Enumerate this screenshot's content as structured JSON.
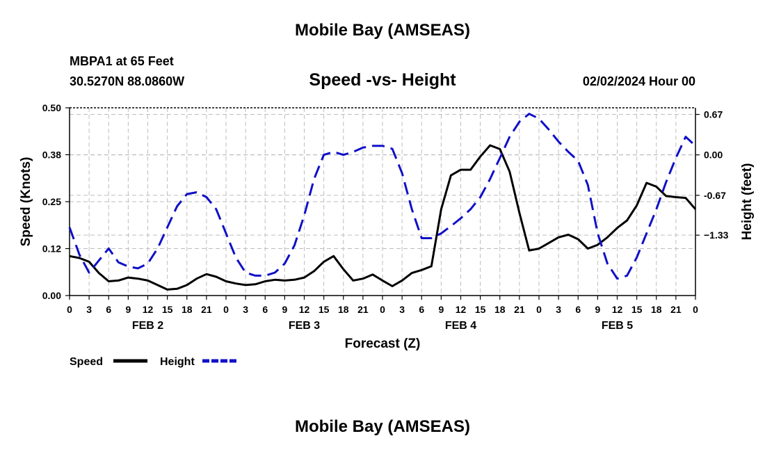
{
  "page": {
    "title_top": "Mobile Bay (AMSEAS)",
    "title_bottom": "Mobile Bay (AMSEAS)",
    "station": "MBPA1 at 65 Feet",
    "coords": "30.5270N  88.0860W",
    "subtitle": "Speed -vs- Height",
    "datestamp": "02/02/2024 Hour 00"
  },
  "colors": {
    "speed": "#000000",
    "height": "#1010c8",
    "grid": "#bdbdbd"
  },
  "chart_data": {
    "type": "line",
    "title": "Speed -vs- Height",
    "xlabel": "Forecast (Z)",
    "x_hour_range": [
      0,
      96
    ],
    "x_tick_labels": [
      "0",
      "3",
      "6",
      "9",
      "12",
      "15",
      "18",
      "21",
      "0",
      "3",
      "6",
      "9",
      "12",
      "15",
      "18",
      "21",
      "0",
      "3",
      "6",
      "9",
      "12",
      "15",
      "18",
      "21",
      "0",
      "3",
      "6",
      "9",
      "12",
      "15",
      "18",
      "21",
      "0"
    ],
    "day_labels": [
      "FEB 2",
      "FEB 3",
      "FEB 4",
      "FEB 5"
    ],
    "ylabel_left": "Speed (Knots)",
    "ylim_left": [
      0,
      0.5
    ],
    "yticks_left": [
      "0.00",
      "0.12",
      "0.25",
      "0.38",
      "0.50"
    ],
    "ylabel_right": "Height (feet)",
    "ylim_right": [
      -2.33,
      0.78
    ],
    "yticks_right": [
      {
        "value": 0.67,
        "label": "0.67"
      },
      {
        "value": 0.0,
        "label": "0.00"
      },
      {
        "value": -0.67,
        "label": "-0.67"
      },
      {
        "value": -1.33,
        "label": "−1.33"
      }
    ],
    "grid": true,
    "series": [
      {
        "name": "Speed",
        "axis": "left",
        "style": "solid",
        "points": [
          [
            0,
            0.105
          ],
          [
            1.5,
            0.1
          ],
          [
            3,
            0.09
          ],
          [
            4.5,
            0.06
          ],
          [
            6,
            0.038
          ],
          [
            7.5,
            0.04
          ],
          [
            9,
            0.048
          ],
          [
            10.5,
            0.045
          ],
          [
            12,
            0.04
          ],
          [
            13.5,
            0.028
          ],
          [
            15,
            0.016
          ],
          [
            16.5,
            0.018
          ],
          [
            18,
            0.028
          ],
          [
            19.5,
            0.045
          ],
          [
            21,
            0.057
          ],
          [
            22.5,
            0.05
          ],
          [
            24,
            0.038
          ],
          [
            25.5,
            0.032
          ],
          [
            27,
            0.028
          ],
          [
            28.5,
            0.03
          ],
          [
            30,
            0.038
          ],
          [
            31.5,
            0.042
          ],
          [
            33,
            0.04
          ],
          [
            34.5,
            0.042
          ],
          [
            36,
            0.048
          ],
          [
            37.5,
            0.065
          ],
          [
            39,
            0.09
          ],
          [
            40.5,
            0.105
          ],
          [
            42,
            0.07
          ],
          [
            43.5,
            0.04
          ],
          [
            45,
            0.045
          ],
          [
            46.5,
            0.056
          ],
          [
            48,
            0.04
          ],
          [
            49.5,
            0.025
          ],
          [
            51,
            0.04
          ],
          [
            52.5,
            0.06
          ],
          [
            54,
            0.068
          ],
          [
            55.5,
            0.078
          ],
          [
            57,
            0.23
          ],
          [
            58.5,
            0.32
          ],
          [
            60,
            0.335
          ],
          [
            61.5,
            0.335
          ],
          [
            63,
            0.37
          ],
          [
            64.5,
            0.4
          ],
          [
            66,
            0.39
          ],
          [
            67.5,
            0.33
          ],
          [
            69,
            0.22
          ],
          [
            70.5,
            0.12
          ],
          [
            72,
            0.125
          ],
          [
            73.5,
            0.14
          ],
          [
            75,
            0.155
          ],
          [
            76.5,
            0.162
          ],
          [
            78,
            0.15
          ],
          [
            79.5,
            0.125
          ],
          [
            81,
            0.135
          ],
          [
            82.5,
            0.155
          ],
          [
            84,
            0.18
          ],
          [
            85.5,
            0.2
          ],
          [
            87,
            0.24
          ],
          [
            88.5,
            0.3
          ],
          [
            90,
            0.29
          ],
          [
            91.5,
            0.265
          ],
          [
            93,
            0.262
          ],
          [
            94.5,
            0.26
          ],
          [
            96,
            0.23
          ]
        ]
      },
      {
        "name": "Height",
        "axis": "right",
        "style": "dashed",
        "points": [
          [
            0,
            -1.2
          ],
          [
            1.5,
            -1.65
          ],
          [
            3,
            -1.95
          ],
          [
            4.5,
            -1.75
          ],
          [
            6,
            -1.55
          ],
          [
            7.5,
            -1.78
          ],
          [
            9,
            -1.85
          ],
          [
            10.5,
            -1.88
          ],
          [
            12,
            -1.8
          ],
          [
            13.5,
            -1.55
          ],
          [
            15,
            -1.2
          ],
          [
            16.5,
            -0.85
          ],
          [
            18,
            -0.65
          ],
          [
            19.5,
            -0.62
          ],
          [
            21,
            -0.7
          ],
          [
            22.5,
            -0.9
          ],
          [
            24,
            -1.3
          ],
          [
            25.5,
            -1.7
          ],
          [
            27,
            -1.95
          ],
          [
            28.5,
            -2.0
          ],
          [
            30,
            -2.0
          ],
          [
            31.5,
            -1.95
          ],
          [
            33,
            -1.8
          ],
          [
            34.5,
            -1.5
          ],
          [
            36,
            -1.0
          ],
          [
            37.5,
            -0.4
          ],
          [
            39,
            0.0
          ],
          [
            40.5,
            0.05
          ],
          [
            42,
            0.0
          ],
          [
            43.5,
            0.05
          ],
          [
            45,
            0.12
          ],
          [
            46.5,
            0.15
          ],
          [
            48,
            0.15
          ],
          [
            49.5,
            0.1
          ],
          [
            51,
            -0.3
          ],
          [
            52.5,
            -0.9
          ],
          [
            54,
            -1.38
          ],
          [
            55.5,
            -1.38
          ],
          [
            57,
            -1.3
          ],
          [
            58.5,
            -1.18
          ],
          [
            60,
            -1.05
          ],
          [
            61.5,
            -0.9
          ],
          [
            63,
            -0.7
          ],
          [
            64.5,
            -0.4
          ],
          [
            66,
            -0.05
          ],
          [
            67.5,
            0.3
          ],
          [
            69,
            0.55
          ],
          [
            70.5,
            0.68
          ],
          [
            72,
            0.6
          ],
          [
            73.5,
            0.42
          ],
          [
            75,
            0.22
          ],
          [
            76.5,
            0.05
          ],
          [
            78,
            -0.1
          ],
          [
            79.5,
            -0.5
          ],
          [
            81,
            -1.3
          ],
          [
            82.5,
            -1.8
          ],
          [
            84,
            -2.05
          ],
          [
            85.5,
            -2.0
          ],
          [
            87,
            -1.7
          ],
          [
            88.5,
            -1.3
          ],
          [
            90,
            -0.9
          ],
          [
            91.5,
            -0.45
          ],
          [
            93,
            -0.05
          ],
          [
            94.5,
            0.3
          ],
          [
            96,
            0.15
          ]
        ]
      }
    ],
    "legend": {
      "placement": "bottom-left",
      "entries": [
        {
          "label": "Speed",
          "style": "solid"
        },
        {
          "label": "Height",
          "style": "dashed"
        }
      ]
    }
  }
}
